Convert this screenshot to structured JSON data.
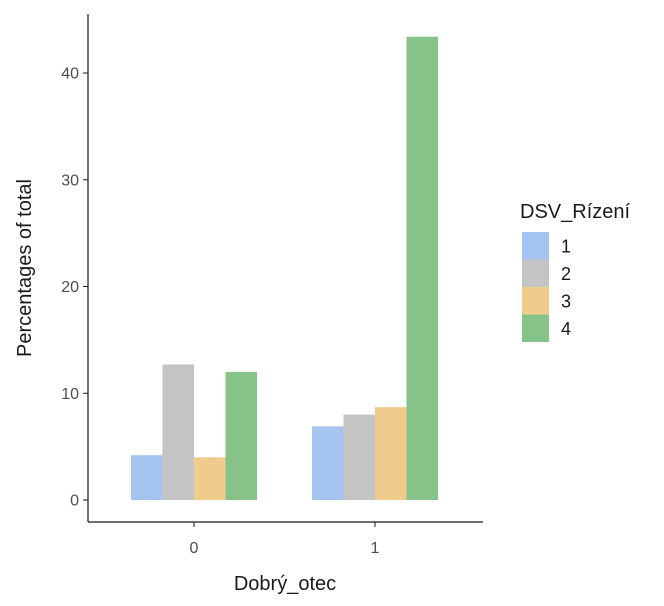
{
  "chart_data": {
    "type": "bar",
    "xlabel": "Dobrý_otec",
    "ylabel": "Percentages of total",
    "categories": [
      "0",
      "1"
    ],
    "series": [
      {
        "name": "1",
        "color": "#a6c4f0",
        "values": [
          4.2,
          6.9
        ]
      },
      {
        "name": "2",
        "color": "#c4c4c4",
        "values": [
          12.7,
          8.0
        ]
      },
      {
        "name": "3",
        "color": "#f0cc8c",
        "values": [
          4.0,
          8.7
        ]
      },
      {
        "name": "4",
        "color": "#86c389",
        "values": [
          12.0,
          43.4
        ]
      }
    ],
    "ylim": [
      0,
      44
    ],
    "yticks": [
      0,
      10,
      20,
      30,
      40
    ],
    "legend": {
      "title": "DSV_Rízení",
      "position": "right"
    },
    "grid": false
  }
}
